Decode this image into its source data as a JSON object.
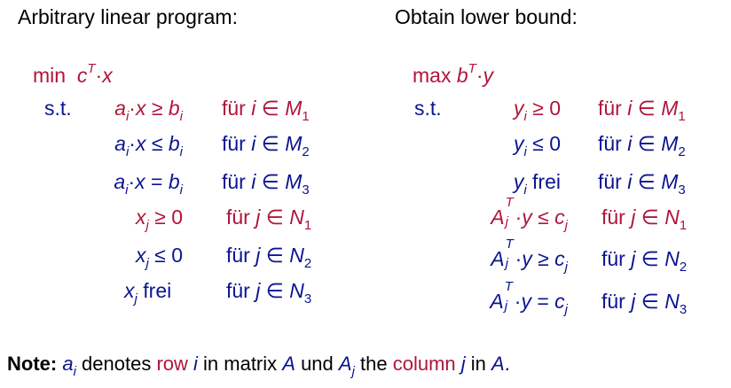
{
  "colors": {
    "red": "#b0153a",
    "blue": "#0b1491",
    "black": "#000000"
  },
  "left": {
    "title": "Arbitrary linear program:",
    "objective": {
      "color": "red",
      "label": "min ",
      "expr": [
        {
          "t": " c",
          "k": "i"
        },
        {
          "t": "T",
          "k": "sup"
        },
        {
          "t": "·",
          "k": "n"
        },
        {
          "t": "x",
          "k": "i"
        }
      ]
    },
    "st": "s.t.",
    "rows": [
      {
        "color": "red",
        "expr": [
          {
            "t": "a",
            "k": "i"
          },
          {
            "t": "i",
            "k": "sub"
          },
          {
            "t": "·",
            "k": "n"
          },
          {
            "t": "x",
            "k": "i"
          },
          {
            "t": " ≥ ",
            "k": "n"
          },
          {
            "t": "b",
            "k": "i"
          },
          {
            "t": "i",
            "k": "sub"
          }
        ],
        "cond": [
          {
            "t": "für ",
            "k": "n"
          },
          {
            "t": "i",
            "k": "i"
          },
          {
            "t": " ∈ ",
            "k": "n"
          },
          {
            "t": "M",
            "k": "i"
          },
          {
            "t": "1",
            "k": "sub"
          }
        ]
      },
      {
        "color": "blue",
        "expr": [
          {
            "t": "a",
            "k": "i"
          },
          {
            "t": "i",
            "k": "sub"
          },
          {
            "t": "·",
            "k": "n"
          },
          {
            "t": "x",
            "k": "i"
          },
          {
            "t": " ≤ ",
            "k": "n"
          },
          {
            "t": "b",
            "k": "i"
          },
          {
            "t": "i",
            "k": "sub"
          }
        ],
        "cond": [
          {
            "t": "für ",
            "k": "n"
          },
          {
            "t": "i",
            "k": "i"
          },
          {
            "t": " ∈ ",
            "k": "n"
          },
          {
            "t": "M",
            "k": "i"
          },
          {
            "t": "2",
            "k": "sub"
          }
        ]
      },
      {
        "color": "blue",
        "expr": [
          {
            "t": "a",
            "k": "i"
          },
          {
            "t": "i",
            "k": "sub"
          },
          {
            "t": "·",
            "k": "n"
          },
          {
            "t": "x",
            "k": "i"
          },
          {
            "t": " = ",
            "k": "n"
          },
          {
            "t": "b",
            "k": "i"
          },
          {
            "t": "i",
            "k": "sub"
          }
        ],
        "cond": [
          {
            "t": "für ",
            "k": "n"
          },
          {
            "t": "i",
            "k": "i"
          },
          {
            "t": " ∈ ",
            "k": "n"
          },
          {
            "t": "M",
            "k": "i"
          },
          {
            "t": "3",
            "k": "sub"
          }
        ]
      },
      {
        "color": "red",
        "expr": [
          {
            "t": "x",
            "k": "i"
          },
          {
            "t": "j",
            "k": "sub"
          },
          {
            "t": " ≥ 0",
            "k": "n"
          }
        ],
        "cond": [
          {
            "t": "für ",
            "k": "n"
          },
          {
            "t": "j",
            "k": "i"
          },
          {
            "t": " ∈ ",
            "k": "n"
          },
          {
            "t": "N",
            "k": "i"
          },
          {
            "t": "1",
            "k": "sub"
          }
        ]
      },
      {
        "color": "blue",
        "expr": [
          {
            "t": "x",
            "k": "i"
          },
          {
            "t": "j",
            "k": "sub"
          },
          {
            "t": " ≤ 0",
            "k": "n"
          }
        ],
        "cond": [
          {
            "t": "für ",
            "k": "n"
          },
          {
            "t": "j",
            "k": "i"
          },
          {
            "t": " ∈ ",
            "k": "n"
          },
          {
            "t": "N",
            "k": "i"
          },
          {
            "t": "2",
            "k": "sub"
          }
        ]
      },
      {
        "color": "blue",
        "expr": [
          {
            "t": "x",
            "k": "i"
          },
          {
            "t": "j",
            "k": "sub"
          },
          {
            "t": " frei  ",
            "k": "n"
          }
        ],
        "cond": [
          {
            "t": "für ",
            "k": "n"
          },
          {
            "t": "j",
            "k": "i"
          },
          {
            "t": " ∈ ",
            "k": "n"
          },
          {
            "t": "N",
            "k": "i"
          },
          {
            "t": "3",
            "k": "sub"
          }
        ]
      }
    ]
  },
  "right": {
    "title": "Obtain lower bound:",
    "objective": {
      "color": "red",
      "label": "max ",
      "expr": [
        {
          "t": "b",
          "k": "i"
        },
        {
          "t": "T",
          "k": "sup"
        },
        {
          "t": "·",
          "k": "n"
        },
        {
          "t": "y",
          "k": "i"
        }
      ]
    },
    "st": "s.t.",
    "rows": [
      {
        "color": "red",
        "expr": [
          {
            "t": "y",
            "k": "i"
          },
          {
            "t": "i",
            "k": "sub"
          },
          {
            "t": " ≥ 0",
            "k": "n"
          }
        ],
        "cond": [
          {
            "t": "für ",
            "k": "n"
          },
          {
            "t": "i",
            "k": "i"
          },
          {
            "t": " ∈ ",
            "k": "n"
          },
          {
            "t": "M",
            "k": "i"
          },
          {
            "t": "1",
            "k": "sub"
          }
        ]
      },
      {
        "color": "blue",
        "expr": [
          {
            "t": "y",
            "k": "i"
          },
          {
            "t": "i",
            "k": "sub"
          },
          {
            "t": " ≤ 0",
            "k": "n"
          }
        ],
        "cond": [
          {
            "t": "für ",
            "k": "n"
          },
          {
            "t": "i",
            "k": "i"
          },
          {
            "t": " ∈ ",
            "k": "n"
          },
          {
            "t": "M",
            "k": "i"
          },
          {
            "t": "2",
            "k": "sub"
          }
        ]
      },
      {
        "color": "blue",
        "expr": [
          {
            "t": "y",
            "k": "i"
          },
          {
            "t": "i",
            "k": "sub"
          },
          {
            "t": " frei",
            "k": "n"
          }
        ],
        "cond": [
          {
            "t": "für ",
            "k": "n"
          },
          {
            "t": "i",
            "k": "i"
          },
          {
            "t": " ∈ ",
            "k": "n"
          },
          {
            "t": "M",
            "k": "i"
          },
          {
            "t": "3",
            "k": "sub"
          }
        ]
      },
      {
        "color": "red",
        "expr": [
          {
            "t": "A",
            "k": "i"
          },
          {
            "k": "ss",
            "sup": "T",
            "sub": "j"
          },
          {
            "t": "·",
            "k": "n"
          },
          {
            "t": "y",
            "k": "i"
          },
          {
            "t": " ≤ ",
            "k": "n"
          },
          {
            "t": "c",
            "k": "i"
          },
          {
            "t": "j",
            "k": "sub"
          }
        ],
        "cond": [
          {
            "t": "für ",
            "k": "n"
          },
          {
            "t": "j",
            "k": "i"
          },
          {
            "t": " ∈ ",
            "k": "n"
          },
          {
            "t": "N",
            "k": "i"
          },
          {
            "t": "1",
            "k": "sub"
          }
        ]
      },
      {
        "color": "blue",
        "expr": [
          {
            "t": "A",
            "k": "i"
          },
          {
            "k": "ss",
            "sup": "T",
            "sub": "j"
          },
          {
            "t": "·",
            "k": "n"
          },
          {
            "t": "y",
            "k": "i"
          },
          {
            "t": " ≥ ",
            "k": "n"
          },
          {
            "t": "c",
            "k": "i"
          },
          {
            "t": "j",
            "k": "sub"
          }
        ],
        "cond": [
          {
            "t": "für ",
            "k": "n"
          },
          {
            "t": "j",
            "k": "i"
          },
          {
            "t": " ∈ ",
            "k": "n"
          },
          {
            "t": "N",
            "k": "i"
          },
          {
            "t": "2",
            "k": "sub"
          }
        ]
      },
      {
        "color": "blue",
        "expr": [
          {
            "t": "A",
            "k": "i"
          },
          {
            "k": "ss",
            "sup": "T",
            "sub": "j"
          },
          {
            "t": "·",
            "k": "n"
          },
          {
            "t": "y",
            "k": "i"
          },
          {
            "t": " = ",
            "k": "n"
          },
          {
            "t": "c",
            "k": "i"
          },
          {
            "t": "j",
            "k": "sub"
          }
        ],
        "cond": [
          {
            "t": "für ",
            "k": "n"
          },
          {
            "t": "j",
            "k": "i"
          },
          {
            "t": " ∈ ",
            "k": "n"
          },
          {
            "t": "N",
            "k": "i"
          },
          {
            "t": "3",
            "k": "sub"
          }
        ]
      }
    ]
  },
  "note": [
    {
      "t": "Note:",
      "k": "b",
      "c": "black"
    },
    {
      "t": " ",
      "k": "n",
      "c": "black"
    },
    {
      "t": "a",
      "k": "i",
      "c": "blue"
    },
    {
      "t": "i",
      "k": "sub",
      "c": "blue"
    },
    {
      "t": " denotes ",
      "k": "n",
      "c": "black"
    },
    {
      "t": "row ",
      "k": "n",
      "c": "red"
    },
    {
      "t": "i",
      "k": "i",
      "c": "blue"
    },
    {
      "t": " in matrix ",
      "k": "n",
      "c": "black"
    },
    {
      "t": "A",
      "k": "i",
      "c": "blue"
    },
    {
      "t": " und ",
      "k": "n",
      "c": "black"
    },
    {
      "t": "A",
      "k": "i",
      "c": "blue"
    },
    {
      "t": "j",
      "k": "sub",
      "c": "blue"
    },
    {
      "t": " the ",
      "k": "n",
      "c": "black"
    },
    {
      "t": "column ",
      "k": "n",
      "c": "red"
    },
    {
      "t": "j",
      "k": "i",
      "c": "blue"
    },
    {
      "t": " in ",
      "k": "n",
      "c": "black"
    },
    {
      "t": "A",
      "k": "i",
      "c": "blue"
    },
    {
      "t": ".",
      "k": "n",
      "c": "black"
    }
  ]
}
